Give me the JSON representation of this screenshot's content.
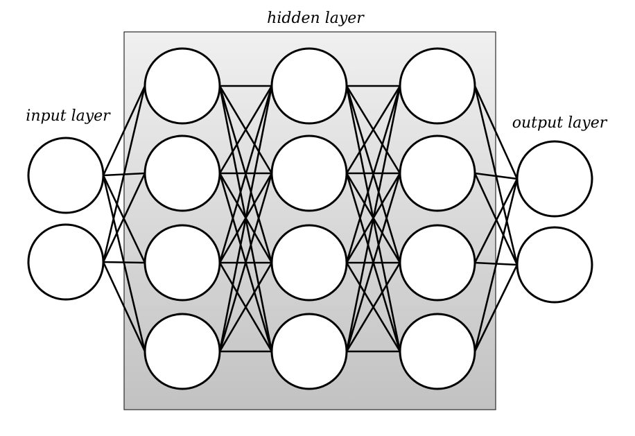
{
  "labels": {
    "input": "input layer",
    "hidden": "hidden layer",
    "output": "output layer"
  },
  "network": {
    "input_nodes": 2,
    "hidden_layers": 3,
    "hidden_nodes_per_layer": 4,
    "output_nodes": 2,
    "fully_connected": true
  },
  "colors": {
    "stroke": "#000000",
    "node_fill": "#ffffff",
    "hidden_box_top": "#f0f0f0",
    "hidden_box_bottom": "#c2c2c2"
  }
}
